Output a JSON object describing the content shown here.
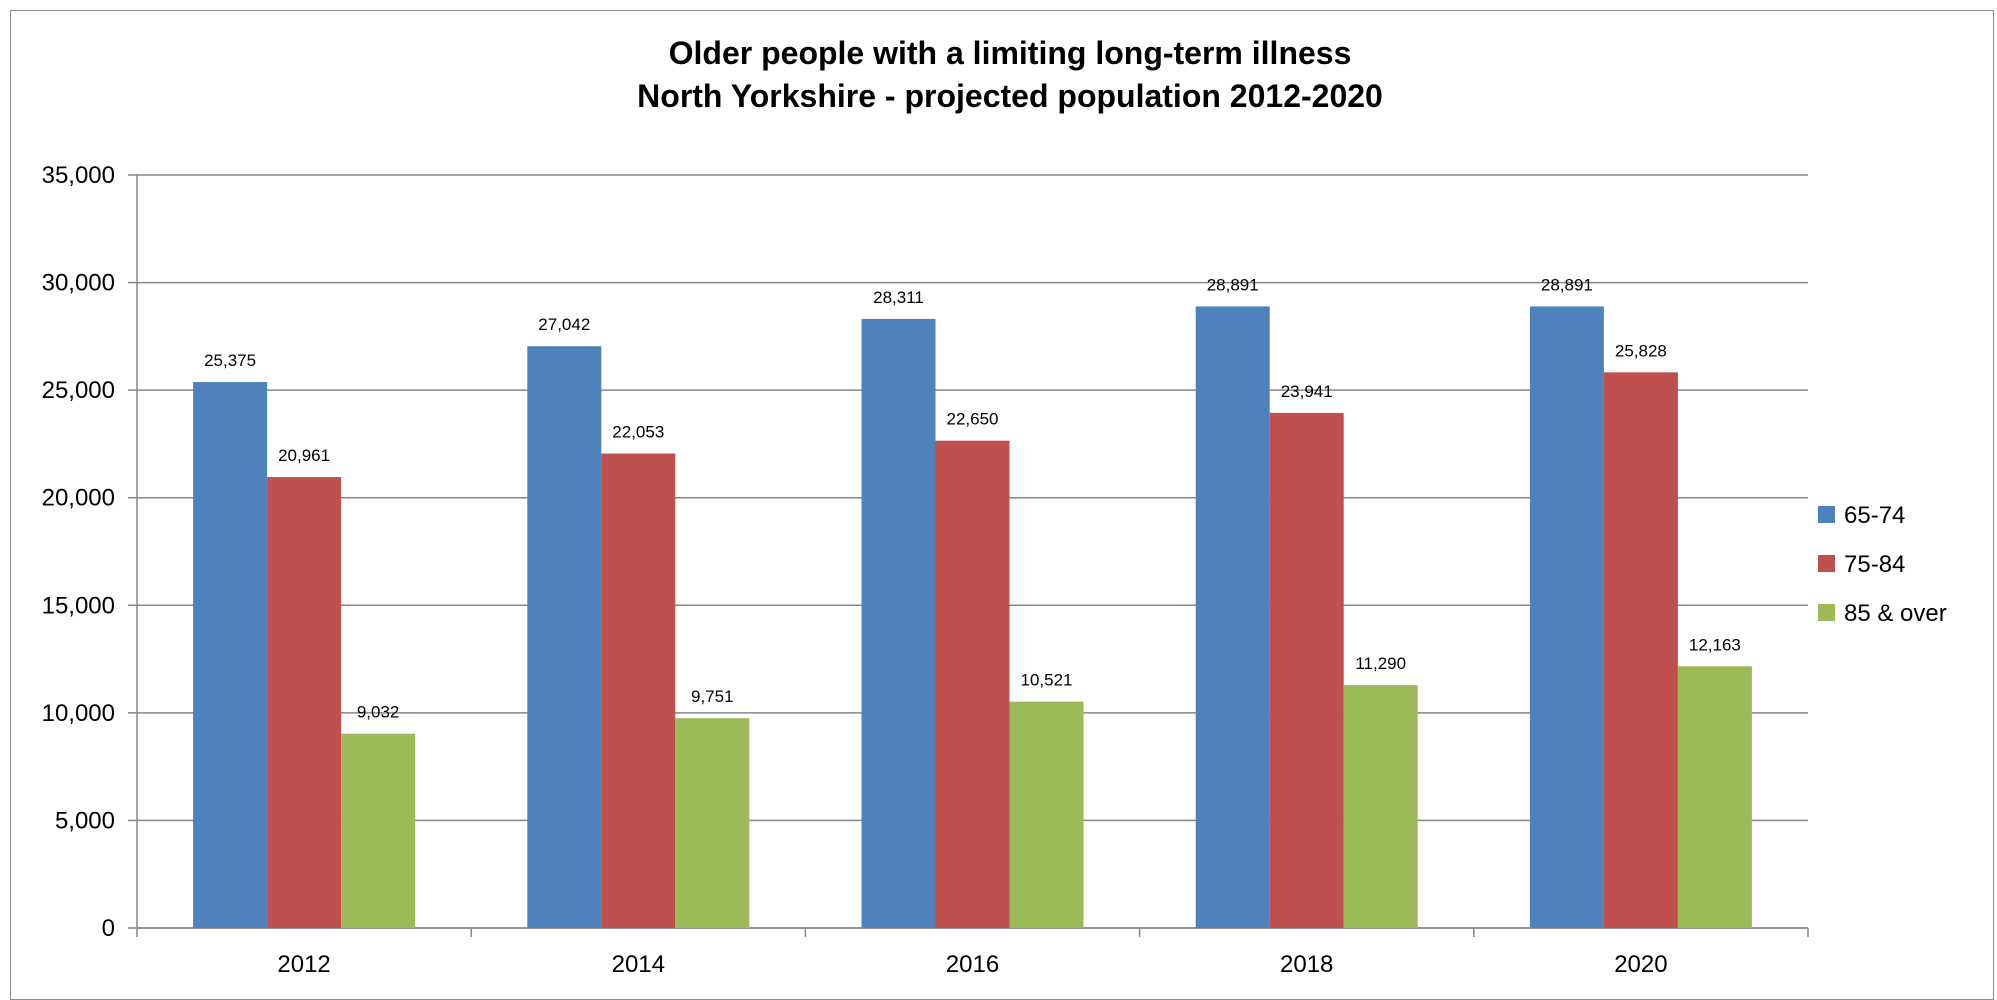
{
  "chart_data": {
    "type": "bar",
    "title": "Older people with a limiting long-term illness",
    "subtitle": "North Yorkshire - projected population 2012-2020",
    "xlabel": "",
    "ylabel": "",
    "categories": [
      "2012",
      "2014",
      "2016",
      "2018",
      "2020"
    ],
    "series": [
      {
        "name": "65-74",
        "color": "#4f81bd",
        "values": [
          25375,
          27042,
          28311,
          28891,
          28891
        ],
        "labels": [
          "25,375",
          "27,042",
          "28,311",
          "28,891",
          "28,891"
        ]
      },
      {
        "name": "75-84",
        "color": "#c0504d",
        "values": [
          20961,
          22053,
          22650,
          23941,
          25828
        ],
        "labels": [
          "20,961",
          "22,053",
          "22,650",
          "23,941",
          "25,828"
        ]
      },
      {
        "name": "85 & over",
        "color": "#9bbb59",
        "values": [
          9032,
          9751,
          10521,
          11290,
          12163
        ],
        "labels": [
          "9,032",
          "9,751",
          "10,521",
          "11,290",
          "12,163"
        ]
      }
    ],
    "ylim": [
      0,
      35000
    ],
    "yticks": [
      0,
      5000,
      10000,
      15000,
      20000,
      25000,
      30000,
      35000
    ],
    "ytick_labels": [
      "0",
      "5,000",
      "10,000",
      "15,000",
      "20,000",
      "25,000",
      "30,000",
      "35,000"
    ],
    "grid": true,
    "legend_position": "right"
  }
}
